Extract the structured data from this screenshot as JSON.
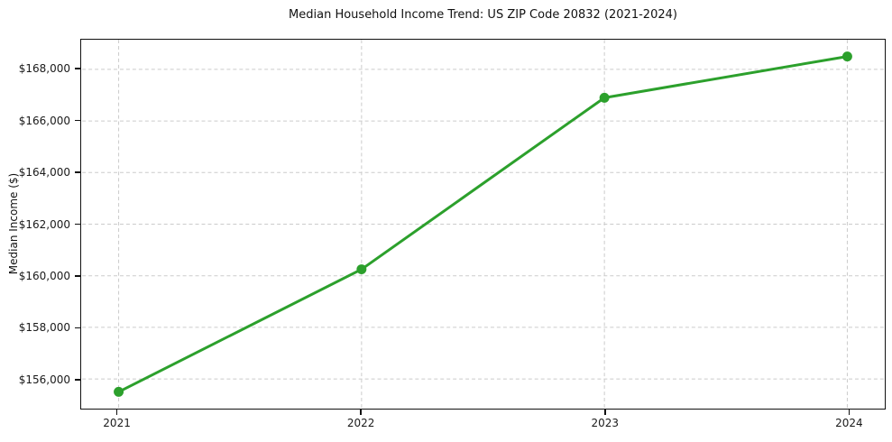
{
  "title": "Median Household Income Trend: US ZIP Code 20832 (2021-2024)",
  "chart_data": {
    "type": "line",
    "title": "Median Household Income Trend: US ZIP Code 20832 (2021-2024)",
    "xlabel": "",
    "ylabel": "Median Income ($)",
    "categories": [
      "2021",
      "2022",
      "2023",
      "2024"
    ],
    "x": [
      2021,
      2022,
      2023,
      2024
    ],
    "series": [
      {
        "name": "Median Household Income",
        "values": [
          155500,
          160250,
          166900,
          168500
        ],
        "color": "#2ca02c",
        "marker": "circle",
        "line_width": 3,
        "marker_radius": 5.5
      }
    ],
    "xlim": [
      2020.85,
      2024.15
    ],
    "ylim": [
      154850,
      169150
    ],
    "yticks": [
      156000,
      158000,
      160000,
      162000,
      164000,
      166000,
      168000
    ],
    "ytick_labels": [
      "$156,000",
      "$158,000",
      "$160,000",
      "$162,000",
      "$164,000",
      "$166,000",
      "$168,000"
    ],
    "grid": true,
    "grid_style": "dashed",
    "legend_position": "none"
  },
  "colors": {
    "line": "#2ca02c",
    "grid": "#cbcbcb",
    "axis": "#111111",
    "text": "#1a1a1a",
    "background": "#ffffff"
  }
}
